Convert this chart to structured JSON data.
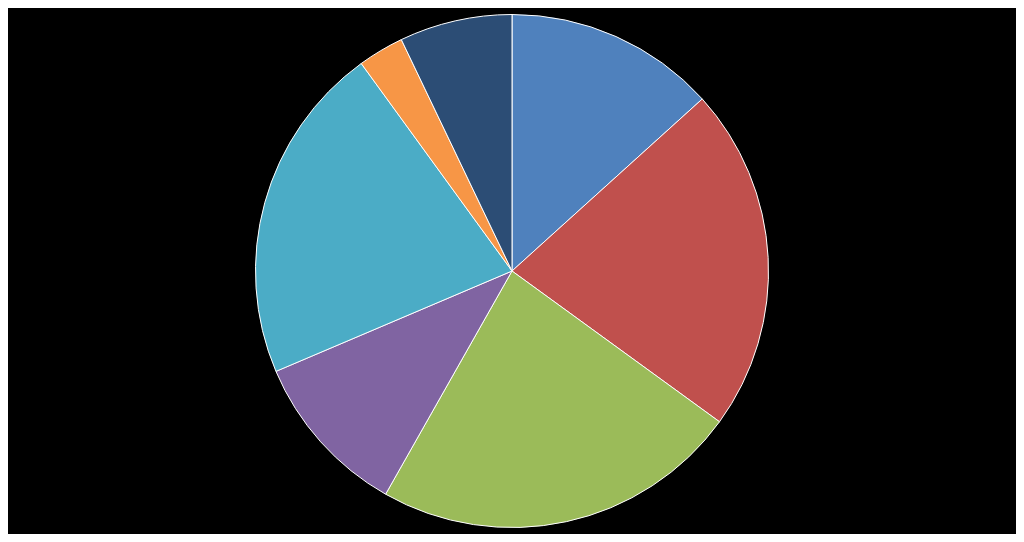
{
  "chart_data": {
    "type": "pie",
    "categories": [
      null,
      null,
      null,
      null,
      null,
      null,
      null
    ],
    "values": [
      13.3,
      21.7,
      23.2,
      10.4,
      21.4,
      2.9,
      7.1
    ],
    "colors": [
      "#4f81bd",
      "#c0504d",
      "#9bbb59",
      "#8064a2",
      "#4bacc6",
      "#f79646",
      "#2c4d75"
    ],
    "legend": false
  }
}
